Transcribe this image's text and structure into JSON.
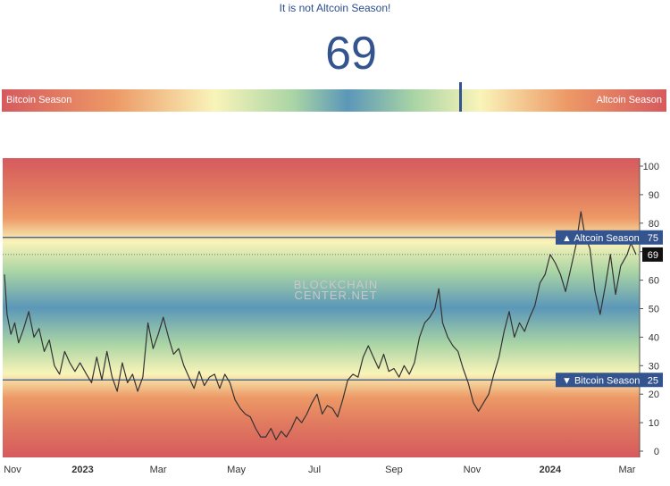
{
  "header": {
    "status": "It is not Altcoin Season!",
    "index_value": "69"
  },
  "gauge": {
    "left_label": "Bitcoin Season",
    "right_label": "Altcoin Season",
    "value": 69,
    "range": [
      0,
      100
    ]
  },
  "colors": {
    "line": "#333333",
    "threshold_line": "#34548f",
    "tag_bg": "#34548f",
    "current_tag_bg": "#111111",
    "red": "#d65a5e",
    "orange": "#ed9966",
    "yellow": "#f9f4b9",
    "green": "#a9d4a5",
    "blue": "#5b97b8"
  },
  "watermark": {
    "line1": "BLOCKCHAIN",
    "line2": "CENTER.NET"
  },
  "chart_data": {
    "type": "line",
    "ylim": [
      0,
      100
    ],
    "yticks": [
      "0",
      "10",
      "20",
      "30",
      "40",
      "50",
      "60",
      "70",
      "80",
      "90",
      "100"
    ],
    "xlim": [
      "2022-11-01",
      "2024-03-08"
    ],
    "xticks": [
      {
        "label": "Nov",
        "date": "2022-11-01",
        "bold": false
      },
      {
        "label": "2023",
        "date": "2023-01-01",
        "bold": true
      },
      {
        "label": "Mar",
        "date": "2023-03-01",
        "bold": false
      },
      {
        "label": "May",
        "date": "2023-05-01",
        "bold": false
      },
      {
        "label": "Jul",
        "date": "2023-07-01",
        "bold": false
      },
      {
        "label": "Sep",
        "date": "2023-09-01",
        "bold": false
      },
      {
        "label": "Nov",
        "date": "2023-11-01",
        "bold": false
      },
      {
        "label": "2024",
        "date": "2024-01-01",
        "bold": true
      },
      {
        "label": "Mar",
        "date": "2024-03-01",
        "bold": false
      }
    ],
    "thresholds": [
      {
        "label": "Altcoin Season",
        "value": 75,
        "value_label": "75",
        "arrow": "▲"
      },
      {
        "label": "Bitcoin Season",
        "value": 25,
        "value_label": "25",
        "arrow": "▼"
      }
    ],
    "current": {
      "value": 69,
      "label": "69"
    },
    "series": [
      {
        "values": [
          [
            "2022-11-01",
            62
          ],
          [
            "2022-11-03",
            48
          ],
          [
            "2022-11-06",
            41
          ],
          [
            "2022-11-09",
            45
          ],
          [
            "2022-11-12",
            38
          ],
          [
            "2022-11-16",
            43
          ],
          [
            "2022-11-20",
            49
          ],
          [
            "2022-11-24",
            40
          ],
          [
            "2022-11-28",
            43
          ],
          [
            "2022-12-02",
            35
          ],
          [
            "2022-12-06",
            39
          ],
          [
            "2022-12-10",
            30
          ],
          [
            "2022-12-14",
            27
          ],
          [
            "2022-12-18",
            35
          ],
          [
            "2022-12-22",
            31
          ],
          [
            "2022-12-26",
            28
          ],
          [
            "2022-12-30",
            31
          ],
          [
            "2023-01-04",
            27
          ],
          [
            "2023-01-08",
            24
          ],
          [
            "2023-01-12",
            33
          ],
          [
            "2023-01-16",
            25
          ],
          [
            "2023-01-20",
            35
          ],
          [
            "2023-01-24",
            26
          ],
          [
            "2023-01-28",
            21
          ],
          [
            "2023-02-01",
            31
          ],
          [
            "2023-02-05",
            24
          ],
          [
            "2023-02-09",
            27
          ],
          [
            "2023-02-13",
            21
          ],
          [
            "2023-02-17",
            26
          ],
          [
            "2023-02-21",
            45
          ],
          [
            "2023-02-25",
            36
          ],
          [
            "2023-03-01",
            41
          ],
          [
            "2023-03-05",
            47
          ],
          [
            "2023-03-09",
            40
          ],
          [
            "2023-03-13",
            34
          ],
          [
            "2023-03-17",
            36
          ],
          [
            "2023-03-21",
            30
          ],
          [
            "2023-03-25",
            26
          ],
          [
            "2023-03-29",
            22
          ],
          [
            "2023-04-02",
            28
          ],
          [
            "2023-04-06",
            23
          ],
          [
            "2023-04-10",
            26
          ],
          [
            "2023-04-14",
            27
          ],
          [
            "2023-04-18",
            22
          ],
          [
            "2023-04-22",
            27
          ],
          [
            "2023-04-26",
            24
          ],
          [
            "2023-04-30",
            18
          ],
          [
            "2023-05-04",
            15
          ],
          [
            "2023-05-08",
            13
          ],
          [
            "2023-05-12",
            12
          ],
          [
            "2023-05-16",
            8
          ],
          [
            "2023-05-20",
            5
          ],
          [
            "2023-05-24",
            5
          ],
          [
            "2023-05-28",
            8
          ],
          [
            "2023-06-01",
            4
          ],
          [
            "2023-06-05",
            7
          ],
          [
            "2023-06-09",
            5
          ],
          [
            "2023-06-13",
            8
          ],
          [
            "2023-06-17",
            12
          ],
          [
            "2023-06-21",
            10
          ],
          [
            "2023-06-25",
            13
          ],
          [
            "2023-06-29",
            17
          ],
          [
            "2023-07-03",
            20
          ],
          [
            "2023-07-07",
            13
          ],
          [
            "2023-07-11",
            16
          ],
          [
            "2023-07-15",
            15
          ],
          [
            "2023-07-19",
            12
          ],
          [
            "2023-07-23",
            18
          ],
          [
            "2023-07-27",
            25
          ],
          [
            "2023-07-31",
            27
          ],
          [
            "2023-08-04",
            26
          ],
          [
            "2023-08-08",
            33
          ],
          [
            "2023-08-12",
            37
          ],
          [
            "2023-08-16",
            33
          ],
          [
            "2023-08-20",
            29
          ],
          [
            "2023-08-24",
            34
          ],
          [
            "2023-08-28",
            28
          ],
          [
            "2023-09-01",
            29
          ],
          [
            "2023-09-05",
            26
          ],
          [
            "2023-09-09",
            30
          ],
          [
            "2023-09-13",
            27
          ],
          [
            "2023-09-17",
            31
          ],
          [
            "2023-09-21",
            40
          ],
          [
            "2023-09-25",
            45
          ],
          [
            "2023-09-29",
            47
          ],
          [
            "2023-10-03",
            50
          ],
          [
            "2023-10-06",
            57
          ],
          [
            "2023-10-09",
            45
          ],
          [
            "2023-10-13",
            40
          ],
          [
            "2023-10-17",
            37
          ],
          [
            "2023-10-21",
            35
          ],
          [
            "2023-10-25",
            29
          ],
          [
            "2023-10-29",
            24
          ],
          [
            "2023-11-02",
            17
          ],
          [
            "2023-11-06",
            14
          ],
          [
            "2023-11-10",
            17
          ],
          [
            "2023-11-14",
            20
          ],
          [
            "2023-11-18",
            27
          ],
          [
            "2023-11-22",
            33
          ],
          [
            "2023-11-26",
            42
          ],
          [
            "2023-11-30",
            49
          ],
          [
            "2023-12-04",
            40
          ],
          [
            "2023-12-08",
            45
          ],
          [
            "2023-12-12",
            42
          ],
          [
            "2023-12-16",
            47
          ],
          [
            "2023-12-20",
            51
          ],
          [
            "2023-12-24",
            59
          ],
          [
            "2023-12-28",
            62
          ],
          [
            "2024-01-01",
            69
          ],
          [
            "2024-01-05",
            66
          ],
          [
            "2024-01-09",
            62
          ],
          [
            "2024-01-13",
            56
          ],
          [
            "2024-01-17",
            64
          ],
          [
            "2024-01-21",
            72
          ],
          [
            "2024-01-25",
            84
          ],
          [
            "2024-01-28",
            76
          ],
          [
            "2024-02-01",
            71
          ],
          [
            "2024-02-05",
            56
          ],
          [
            "2024-02-09",
            48
          ],
          [
            "2024-02-13",
            58
          ],
          [
            "2024-02-17",
            69
          ],
          [
            "2024-02-21",
            55
          ],
          [
            "2024-02-25",
            65
          ],
          [
            "2024-03-01",
            69
          ],
          [
            "2024-03-04",
            73
          ],
          [
            "2024-03-08",
            69
          ]
        ]
      }
    ]
  }
}
